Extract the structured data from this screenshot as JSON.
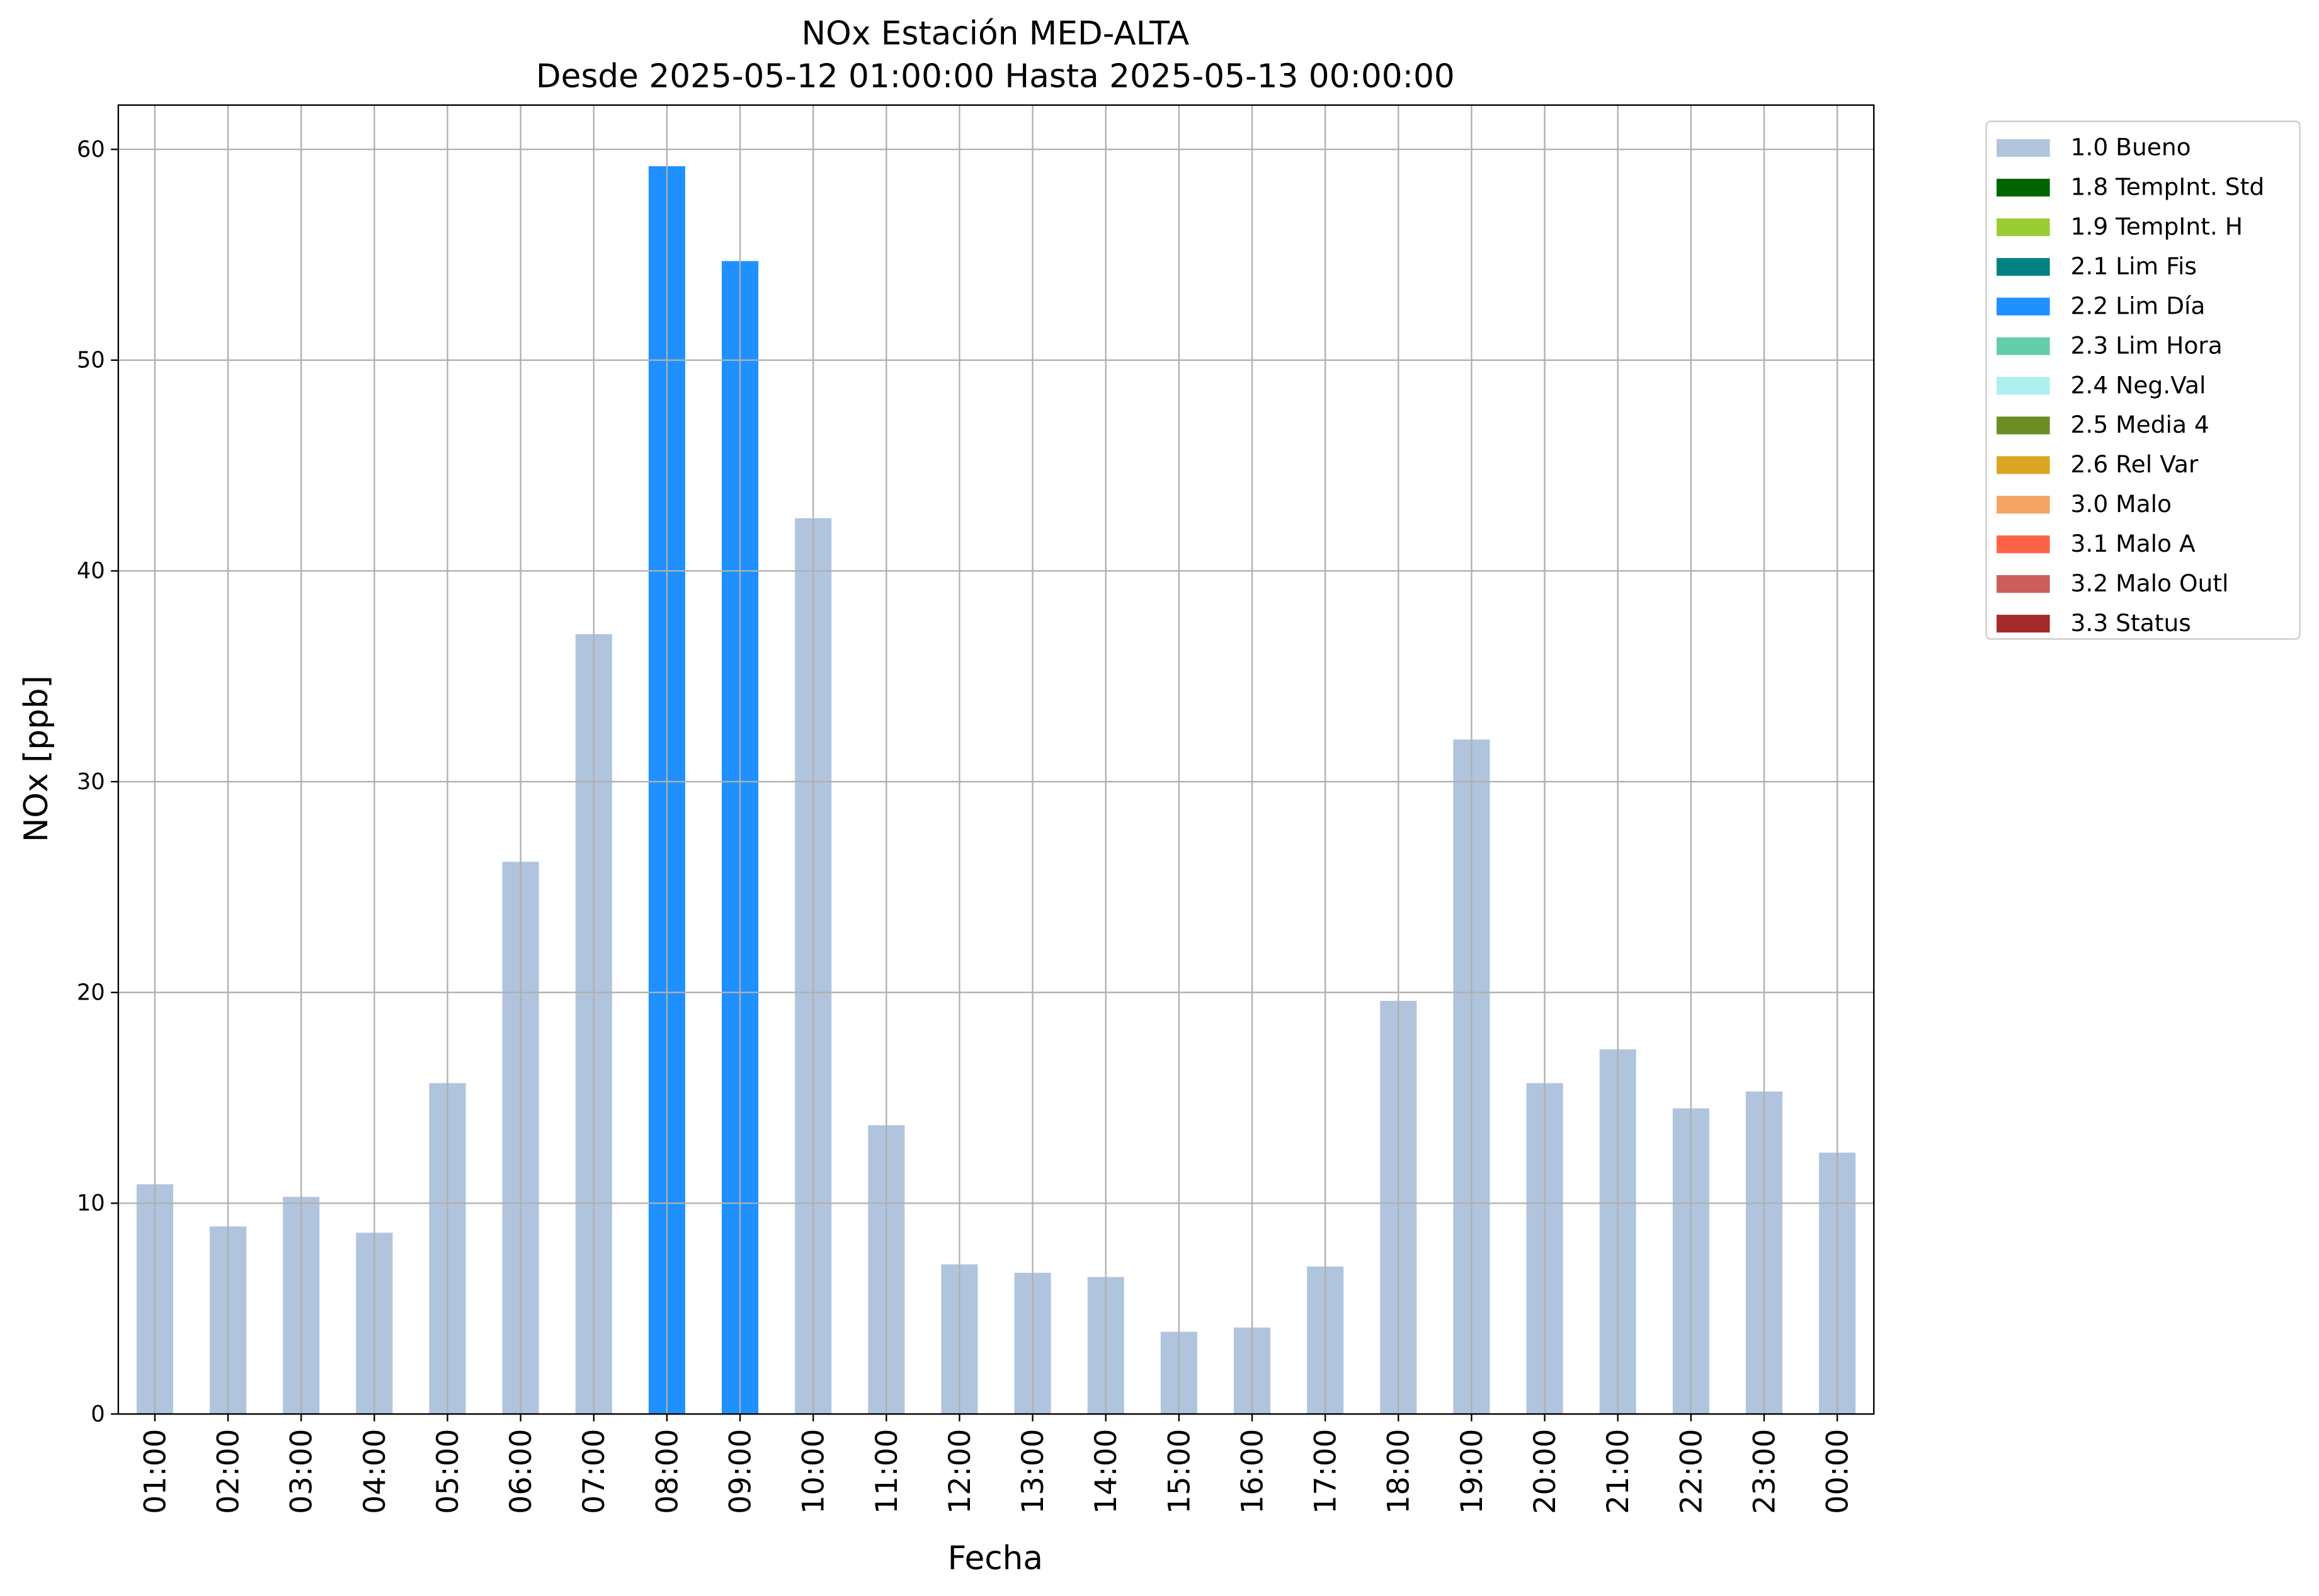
{
  "chart_data": {
    "type": "bar",
    "title": "NOx Estación MED-ALTA",
    "subtitle": "Desde 2025-05-12 01:00:00 Hasta 2025-05-13 00:00:00",
    "x_label": "Fecha",
    "y_label": "NOx [ppb]",
    "categories": [
      "01:00",
      "02:00",
      "03:00",
      "04:00",
      "05:00",
      "06:00",
      "07:00",
      "08:00",
      "09:00",
      "10:00",
      "11:00",
      "12:00",
      "13:00",
      "14:00",
      "15:00",
      "16:00",
      "17:00",
      "18:00",
      "19:00",
      "20:00",
      "21:00",
      "22:00",
      "23:00",
      "00:00"
    ],
    "series": [
      {
        "name": "1.0 Bueno",
        "color": "#b0c4de",
        "values": [
          10.9,
          8.9,
          10.3,
          8.6,
          15.7,
          26.2,
          37.0,
          null,
          null,
          42.5,
          13.7,
          7.1,
          6.7,
          6.5,
          3.9,
          4.1,
          7.0,
          19.6,
          32.0,
          15.7,
          17.3,
          14.5,
          15.3,
          12.4
        ]
      },
      {
        "name": "1.8 TempInt. Std",
        "color": "#006400",
        "values": [
          null,
          null,
          null,
          null,
          null,
          null,
          null,
          null,
          null,
          null,
          null,
          null,
          null,
          null,
          null,
          null,
          null,
          null,
          null,
          null,
          null,
          null,
          null,
          null
        ]
      },
      {
        "name": "1.9 TempInt. H",
        "color": "#9acd32",
        "values": [
          null,
          null,
          null,
          null,
          null,
          null,
          null,
          null,
          null,
          null,
          null,
          null,
          null,
          null,
          null,
          null,
          null,
          null,
          null,
          null,
          null,
          null,
          null,
          null
        ]
      },
      {
        "name": "2.1 Lim Fis",
        "color": "#008080",
        "values": [
          null,
          null,
          null,
          null,
          null,
          null,
          null,
          null,
          null,
          null,
          null,
          null,
          null,
          null,
          null,
          null,
          null,
          null,
          null,
          null,
          null,
          null,
          null,
          null
        ]
      },
      {
        "name": "2.2 Lim Día",
        "color": "#1e90ff",
        "values": [
          null,
          null,
          null,
          null,
          null,
          null,
          null,
          59.2,
          54.7,
          null,
          null,
          null,
          null,
          null,
          null,
          null,
          null,
          null,
          null,
          null,
          null,
          null,
          null,
          null
        ]
      },
      {
        "name": "2.3 Lim Hora",
        "color": "#66cdaa",
        "values": [
          null,
          null,
          null,
          null,
          null,
          null,
          null,
          null,
          null,
          null,
          null,
          null,
          null,
          null,
          null,
          null,
          null,
          null,
          null,
          null,
          null,
          null,
          null,
          null
        ]
      },
      {
        "name": "2.4 Neg.Val",
        "color": "#afeeee",
        "values": [
          null,
          null,
          null,
          null,
          null,
          null,
          null,
          null,
          null,
          null,
          null,
          null,
          null,
          null,
          null,
          null,
          null,
          null,
          null,
          null,
          null,
          null,
          null,
          null
        ]
      },
      {
        "name": "2.5 Media 4",
        "color": "#6b8e23",
        "values": [
          null,
          null,
          null,
          null,
          null,
          null,
          null,
          null,
          null,
          null,
          null,
          null,
          null,
          null,
          null,
          null,
          null,
          null,
          null,
          null,
          null,
          null,
          null,
          null
        ]
      },
      {
        "name": "2.6 Rel Var",
        "color": "#daa520",
        "values": [
          null,
          null,
          null,
          null,
          null,
          null,
          null,
          null,
          null,
          null,
          null,
          null,
          null,
          null,
          null,
          null,
          null,
          null,
          null,
          null,
          null,
          null,
          null,
          null
        ]
      },
      {
        "name": "3.0 Malo",
        "color": "#f4a460",
        "values": [
          null,
          null,
          null,
          null,
          null,
          null,
          null,
          null,
          null,
          null,
          null,
          null,
          null,
          null,
          null,
          null,
          null,
          null,
          null,
          null,
          null,
          null,
          null,
          null
        ]
      },
      {
        "name": "3.1 Malo A",
        "color": "#ff6347",
        "values": [
          null,
          null,
          null,
          null,
          null,
          null,
          null,
          null,
          null,
          null,
          null,
          null,
          null,
          null,
          null,
          null,
          null,
          null,
          null,
          null,
          null,
          null,
          null,
          null
        ]
      },
      {
        "name": "3.2 Malo Outl",
        "color": "#cd5c5c",
        "values": [
          null,
          null,
          null,
          null,
          null,
          null,
          null,
          null,
          null,
          null,
          null,
          null,
          null,
          null,
          null,
          null,
          null,
          null,
          null,
          null,
          null,
          null,
          null,
          null
        ]
      },
      {
        "name": "3.3 Status",
        "color": "#a52a2a",
        "values": [
          null,
          null,
          null,
          null,
          null,
          null,
          null,
          null,
          null,
          null,
          null,
          null,
          null,
          null,
          null,
          null,
          null,
          null,
          null,
          null,
          null,
          null,
          null,
          null
        ]
      }
    ],
    "ylim": [
      0,
      62.1
    ],
    "yticks": [
      0,
      10,
      20,
      30,
      40,
      50,
      60
    ],
    "grid": true,
    "legend": "outside-upper-right"
  }
}
